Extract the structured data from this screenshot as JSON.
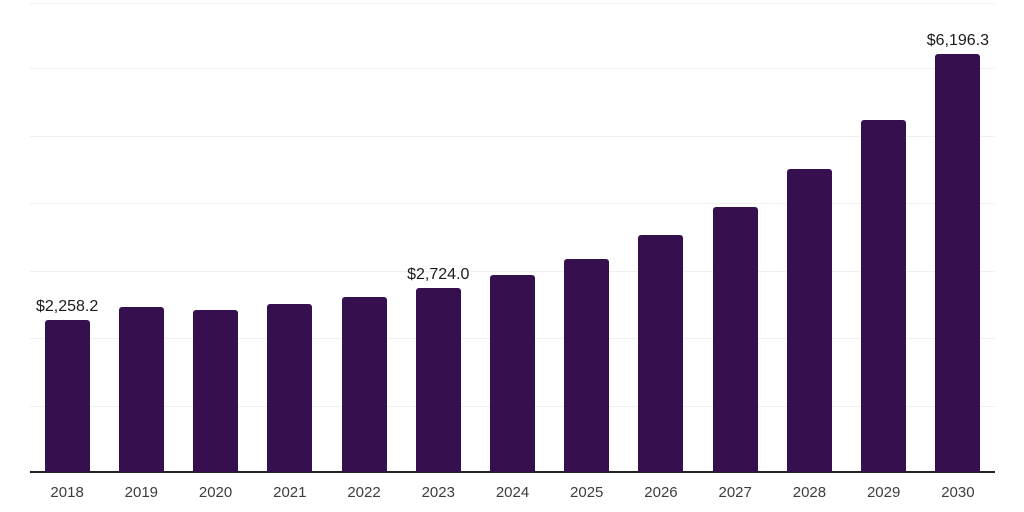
{
  "chart_data": {
    "type": "bar",
    "title": "",
    "xlabel": "",
    "ylabel": "",
    "categories": [
      "2018",
      "2019",
      "2020",
      "2021",
      "2022",
      "2023",
      "2024",
      "2025",
      "2026",
      "2027",
      "2028",
      "2029",
      "2030"
    ],
    "values": [
      2258.2,
      2445,
      2395,
      2485,
      2600,
      2724.0,
      2920,
      3160,
      3515,
      3925,
      4490,
      5210,
      6196.3
    ],
    "data_labels": [
      "$2,258.2",
      null,
      null,
      null,
      null,
      "$2,724.0",
      null,
      null,
      null,
      null,
      null,
      null,
      "$6,196.3"
    ],
    "ylim": [
      0,
      6950
    ],
    "gridline_interval": 1000,
    "grid": true,
    "legend": "none",
    "colors": {
      "bar_fill": "#36104E",
      "axis_line": "#222222",
      "gridline": "#f0f0f0",
      "plot_top_border": "#f0f0f0",
      "data_label_text": "#1a1a1a",
      "tick_label_text": "#3d3d3d",
      "background": "#ffffff"
    }
  }
}
